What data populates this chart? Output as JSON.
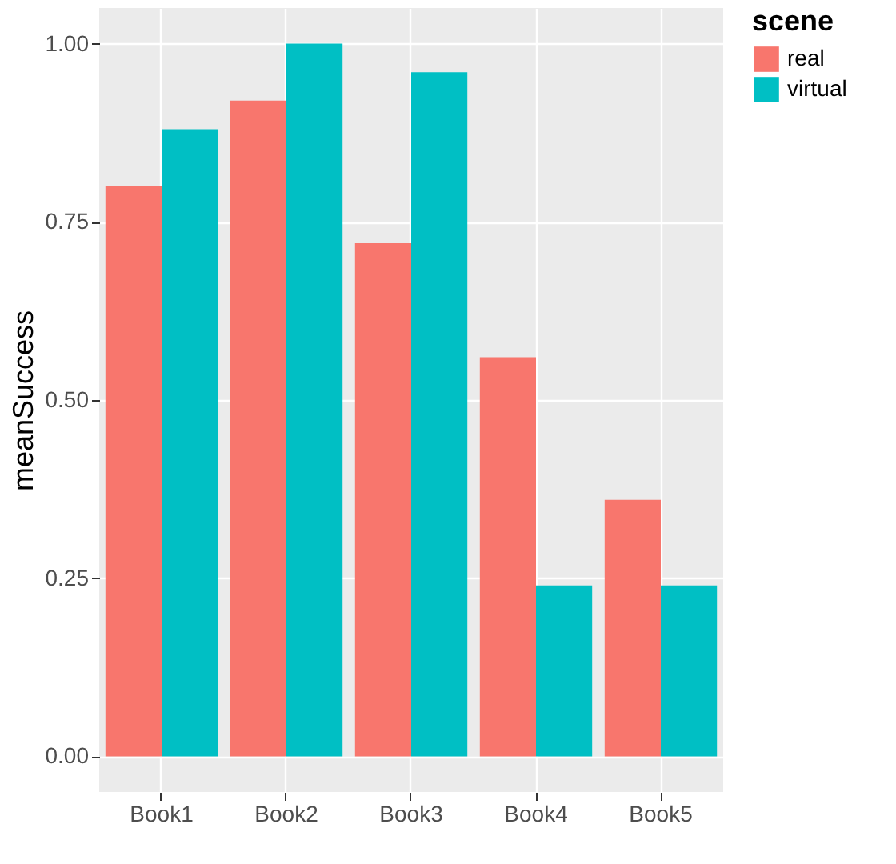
{
  "chart_data": {
    "type": "bar",
    "ylabel": "meanSuccess",
    "legend_title": "scene",
    "categories": [
      "Book1",
      "Book2",
      "Book3",
      "Book4",
      "Book5"
    ],
    "series": [
      {
        "name": "real",
        "color": "#f8766d",
        "values": [
          0.8,
          0.92,
          0.72,
          0.56,
          0.36
        ]
      },
      {
        "name": "virtual",
        "color": "#00bfc4",
        "values": [
          0.88,
          1.0,
          0.96,
          0.24,
          0.24
        ]
      }
    ],
    "ylim": [
      -0.05,
      1.05
    ],
    "yticks": [
      {
        "value": 0,
        "label": "0.00"
      },
      {
        "value": 0.25,
        "label": "0.25"
      },
      {
        "value": 0.5,
        "label": "0.50"
      },
      {
        "value": 0.75,
        "label": "0.75"
      },
      {
        "value": 1,
        "label": "1.00"
      }
    ],
    "grid": true,
    "legend": "right"
  }
}
